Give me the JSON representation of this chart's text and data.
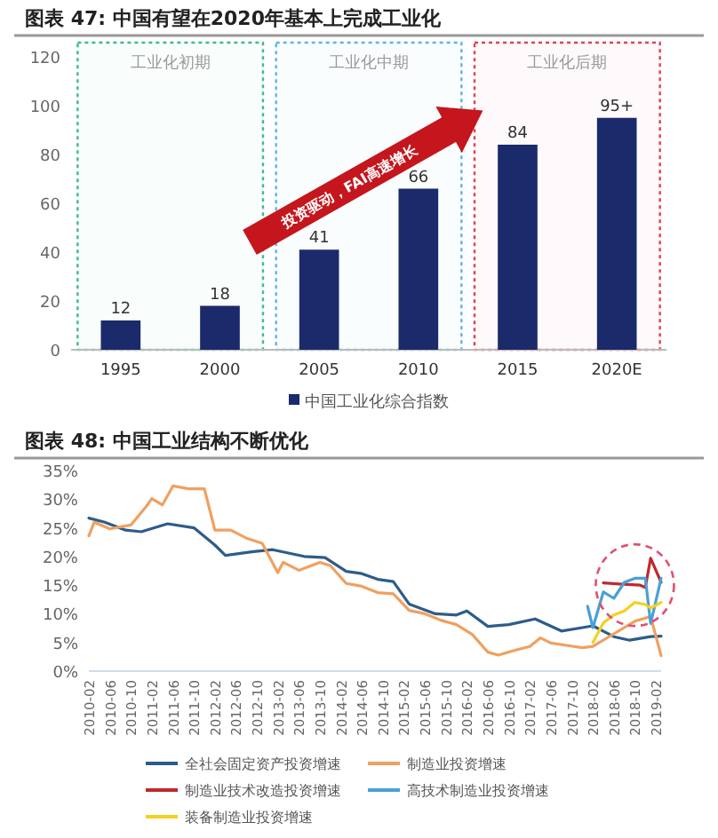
{
  "chart_data": [
    {
      "type": "bar",
      "title": "图表 47:   中国有望在2020年基本上完成工业化",
      "categories": [
        "1995",
        "2000",
        "2005",
        "2010",
        "2015",
        "2020E"
      ],
      "series": [
        {
          "name": "中国工业化综合指数",
          "color": "#1b2a6b",
          "values": [
            12,
            18,
            41,
            66,
            84,
            95
          ],
          "value_labels": [
            "12",
            "18",
            "41",
            "66",
            "84",
            "95+"
          ]
        }
      ],
      "ylim": [
        0,
        120
      ],
      "yticks": [
        0,
        20,
        40,
        60,
        80,
        100,
        120
      ],
      "legend": "bottom",
      "grid": false,
      "bands": [
        {
          "axis": "x",
          "from": "1995",
          "to": "2000",
          "label": "工业化初期",
          "color": "#3dba9a"
        },
        {
          "axis": "x",
          "from": "2005",
          "to": "2010",
          "label": "工业化中期",
          "color": "#5ab6e6"
        },
        {
          "axis": "x",
          "from": "2015",
          "to": "2020E",
          "label": "工业化后期",
          "color": "#e0405a"
        }
      ],
      "annotations": [
        "投资驱动，FAI高速增长"
      ]
    },
    {
      "type": "line",
      "title": "图表 48:   中国工业结构不断优化",
      "legend": "bottom",
      "grid": false,
      "marker": "none",
      "line_style": "solid",
      "xlim": [
        "2010-02",
        "2019-03"
      ],
      "xticks": [
        "2010-02",
        "2010-06",
        "2010-10",
        "2011-02",
        "2011-06",
        "2011-10",
        "2012-02",
        "2012-06",
        "2012-10",
        "2013-02",
        "2013-06",
        "2013-10",
        "2014-02",
        "2014-06",
        "2014-10",
        "2015-02",
        "2015-06",
        "2015-10",
        "2016-02",
        "2016-06",
        "2016-10",
        "2017-02",
        "2017-06",
        "2017-10",
        "2018-02",
        "2018-06",
        "2018-10",
        "2019-02"
      ],
      "ylim": [
        0,
        35
      ],
      "yticks": [
        {
          "value": 0,
          "label": "0%"
        },
        {
          "value": 5,
          "label": "5%"
        },
        {
          "value": 10,
          "label": "10%"
        },
        {
          "value": 15,
          "label": "15%"
        },
        {
          "value": 20,
          "label": "20%"
        },
        {
          "value": 25,
          "label": "25%"
        },
        {
          "value": 30,
          "label": "30%"
        },
        {
          "value": 35,
          "label": "35%"
        }
      ],
      "series": [
        {
          "name": "全社会固定资产投资增速",
          "color": "#2e5c8a",
          "x": [
            "2010-02",
            "2010-05",
            "2010-09",
            "2010-12",
            "2011-05",
            "2011-10",
            "2012-02",
            "2012-04",
            "2012-09",
            "2013-01",
            "2013-07",
            "2013-11",
            "2014-03",
            "2014-06",
            "2014-09",
            "2014-12",
            "2015-03",
            "2015-08",
            "2015-12",
            "2016-02",
            "2016-06",
            "2016-10",
            "2017-03",
            "2017-08",
            "2017-12",
            "2018-02",
            "2018-06",
            "2018-09",
            "2019-01",
            "2019-03"
          ],
          "values": [
            26.7,
            26,
            24.6,
            24.3,
            25.7,
            25,
            22,
            20.2,
            20.8,
            21.2,
            20,
            19.8,
            17.4,
            17,
            16,
            15.6,
            11.7,
            10,
            9.8,
            10.5,
            7.8,
            8.1,
            9.1,
            7,
            7.6,
            7.9,
            6,
            5.4,
            6,
            6.1
          ]
        },
        {
          "name": "制造业投资增速",
          "color": "#f0a060",
          "x": [
            "2010-02",
            "2010-03",
            "2010-06",
            "2010-10",
            "2011-01",
            "2011-02",
            "2011-04",
            "2011-06",
            "2011-09",
            "2011-12",
            "2012-02",
            "2012-05",
            "2012-08",
            "2012-11",
            "2013-02",
            "2013-03",
            "2013-06",
            "2013-10",
            "2013-12",
            "2014-03",
            "2014-06",
            "2014-09",
            "2014-12",
            "2015-03",
            "2015-06",
            "2015-09",
            "2015-12",
            "2016-03",
            "2016-06",
            "2016-08",
            "2016-11",
            "2017-02",
            "2017-04",
            "2017-06",
            "2017-09",
            "2017-12",
            "2018-02",
            "2018-06",
            "2018-10",
            "2019-01",
            "2019-03"
          ],
          "values": [
            23.6,
            26,
            24.8,
            25.5,
            28.8,
            30.1,
            29,
            32.3,
            31.8,
            31.8,
            24.6,
            24.6,
            23.2,
            22.3,
            17.2,
            19,
            17.6,
            19,
            18.4,
            15.3,
            14.8,
            13.7,
            13.5,
            10.6,
            10,
            8.9,
            8.1,
            6.4,
            3.3,
            2.8,
            3.6,
            4.3,
            5.8,
            4.9,
            4.5,
            4.1,
            4.3,
            6.5,
            8.7,
            9.5,
            2.7
          ]
        },
        {
          "name": "制造业技术改造投资增速",
          "color": "#c0282d",
          "x": [
            "2018-04",
            "2018-07",
            "2018-11",
            "2018-12",
            "2019-01",
            "2019-03"
          ],
          "values": [
            15.4,
            15.2,
            15,
            14.6,
            19.7,
            15.5
          ]
        },
        {
          "name": "高技术制造业投资增速",
          "color": "#4aa0d8",
          "x": [
            "2018-01",
            "2018-02",
            "2018-04",
            "2018-06",
            "2018-08",
            "2018-10",
            "2018-12",
            "2019-01",
            "2019-03"
          ],
          "values": [
            11.3,
            7.6,
            13.8,
            12.7,
            15.5,
            16.2,
            16.2,
            8.3,
            16.2
          ]
        },
        {
          "name": "装备制造业投资增速",
          "color": "#f5d020",
          "x": [
            "2018-02",
            "2018-04",
            "2018-06",
            "2018-08",
            "2018-10",
            "2018-12",
            "2019-01",
            "2019-03"
          ],
          "values": [
            5,
            8.4,
            9.8,
            10.5,
            12,
            11.6,
            11,
            12
          ]
        }
      ]
    }
  ]
}
